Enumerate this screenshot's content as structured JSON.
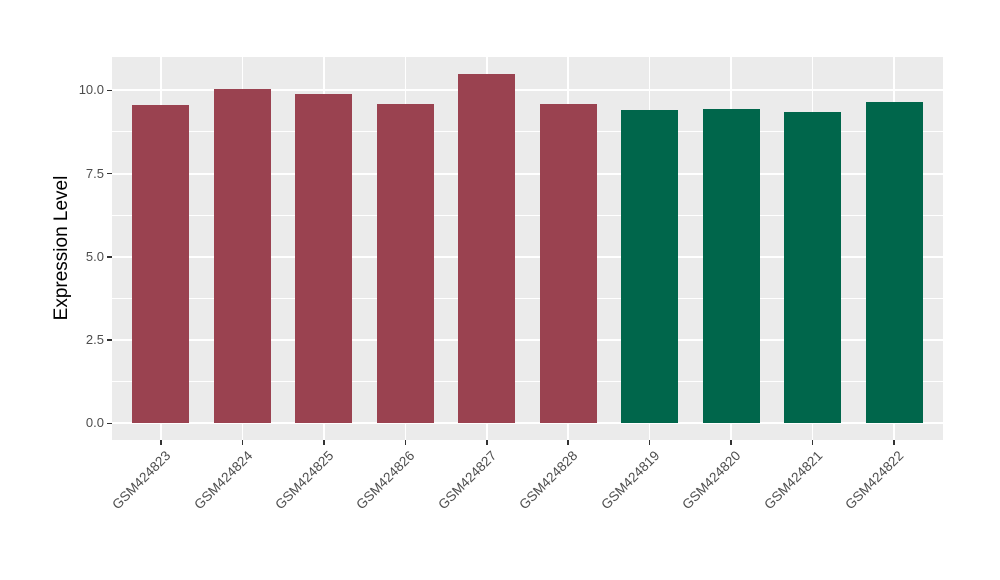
{
  "chart_data": {
    "type": "bar",
    "title": "",
    "xlabel": "",
    "ylabel": "Expression Level",
    "categories": [
      "GSM424823",
      "GSM424824",
      "GSM424825",
      "GSM424826",
      "GSM424827",
      "GSM424828",
      "GSM424819",
      "GSM424820",
      "GSM424821",
      "GSM424822"
    ],
    "values": [
      9.55,
      10.05,
      9.9,
      9.6,
      10.5,
      9.6,
      9.4,
      9.45,
      9.35,
      9.65
    ],
    "bar_colors": [
      "#9A4250",
      "#9A4250",
      "#9A4250",
      "#9A4250",
      "#9A4250",
      "#9A4250",
      "#00664B",
      "#00664B",
      "#00664B",
      "#00664B"
    ],
    "y_ticks": [
      {
        "value": 0,
        "label": "0.0"
      },
      {
        "value": 2.5,
        "label": "2.5"
      },
      {
        "value": 5,
        "label": "5.0"
      },
      {
        "value": 7.5,
        "label": "7.5"
      },
      {
        "value": 10,
        "label": "10.0"
      }
    ],
    "ylim": [
      -0.5,
      11.0
    ],
    "grid": "on",
    "legend": "none",
    "colors": {
      "group_left": "#9A4250",
      "group_right": "#00664B",
      "panel_background": "#EBEBEB",
      "gridline": "#FFFFFF",
      "axis_text": "#4D4D4D",
      "tick_mark": "#333333"
    }
  }
}
